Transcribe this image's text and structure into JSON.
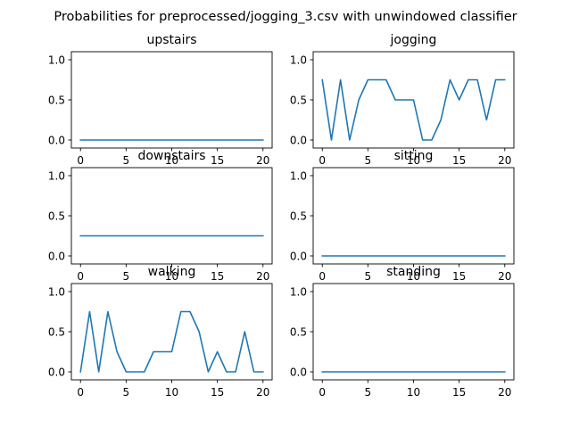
{
  "suptitle": "Probabilities for preprocessed/jogging_3.csv with unwindowed classifier",
  "line_color": "#1f77b4",
  "chart_data": [
    {
      "type": "line",
      "title": "upstairs",
      "x": [
        0,
        1,
        2,
        3,
        4,
        5,
        6,
        7,
        8,
        9,
        10,
        11,
        12,
        13,
        14,
        15,
        16,
        17,
        18,
        19,
        20
      ],
      "values": [
        0,
        0,
        0,
        0,
        0,
        0,
        0,
        0,
        0,
        0,
        0,
        0,
        0,
        0,
        0,
        0,
        0,
        0,
        0,
        0,
        0
      ],
      "xlim": [
        -1,
        21
      ],
      "ylim": [
        -0.1,
        1.1
      ],
      "xticks": [
        0,
        5,
        10,
        15,
        20
      ],
      "yticks": [
        0.0,
        0.5,
        1.0
      ],
      "xtick_labels": [
        "0",
        "5",
        "10",
        "15",
        "20"
      ],
      "ytick_labels": [
        "0.0",
        "0.5",
        "1.0"
      ],
      "grid": false
    },
    {
      "type": "line",
      "title": "jogging",
      "x": [
        0,
        1,
        2,
        3,
        4,
        5,
        6,
        7,
        8,
        9,
        10,
        11,
        12,
        13,
        14,
        15,
        16,
        17,
        18,
        19,
        20
      ],
      "values": [
        0.75,
        0,
        0.75,
        0,
        0.5,
        0.75,
        0.75,
        0.75,
        0.5,
        0.5,
        0.5,
        0,
        0,
        0.25,
        0.75,
        0.5,
        0.75,
        0.75,
        0.25,
        0.75,
        0.75
      ],
      "xlim": [
        -1,
        21
      ],
      "ylim": [
        -0.1,
        1.1
      ],
      "xticks": [
        0,
        5,
        10,
        15,
        20
      ],
      "yticks": [
        0.0,
        0.5,
        1.0
      ],
      "xtick_labels": [
        "0",
        "5",
        "10",
        "15",
        "20"
      ],
      "ytick_labels": [
        "0.0",
        "0.5",
        "1.0"
      ],
      "grid": false
    },
    {
      "type": "line",
      "title": "downstairs",
      "x": [
        0,
        1,
        2,
        3,
        4,
        5,
        6,
        7,
        8,
        9,
        10,
        11,
        12,
        13,
        14,
        15,
        16,
        17,
        18,
        19,
        20
      ],
      "values": [
        0.25,
        0.25,
        0.25,
        0.25,
        0.25,
        0.25,
        0.25,
        0.25,
        0.25,
        0.25,
        0.25,
        0.25,
        0.25,
        0.25,
        0.25,
        0.25,
        0.25,
        0.25,
        0.25,
        0.25,
        0.25
      ],
      "xlim": [
        -1,
        21
      ],
      "ylim": [
        -0.1,
        1.1
      ],
      "xticks": [
        0,
        5,
        10,
        15,
        20
      ],
      "yticks": [
        0.0,
        0.5,
        1.0
      ],
      "xtick_labels": [
        "0",
        "5",
        "10",
        "15",
        "20"
      ],
      "ytick_labels": [
        "0.0",
        "0.5",
        "1.0"
      ],
      "grid": false
    },
    {
      "type": "line",
      "title": "sitting",
      "x": [
        0,
        1,
        2,
        3,
        4,
        5,
        6,
        7,
        8,
        9,
        10,
        11,
        12,
        13,
        14,
        15,
        16,
        17,
        18,
        19,
        20
      ],
      "values": [
        0,
        0,
        0,
        0,
        0,
        0,
        0,
        0,
        0,
        0,
        0,
        0,
        0,
        0,
        0,
        0,
        0,
        0,
        0,
        0,
        0
      ],
      "xlim": [
        -1,
        21
      ],
      "ylim": [
        -0.1,
        1.1
      ],
      "xticks": [
        0,
        5,
        10,
        15,
        20
      ],
      "yticks": [
        0.0,
        0.5,
        1.0
      ],
      "xtick_labels": [
        "0",
        "5",
        "10",
        "15",
        "20"
      ],
      "ytick_labels": [
        "0.0",
        "0.5",
        "1.0"
      ],
      "grid": false
    },
    {
      "type": "line",
      "title": "walking",
      "x": [
        0,
        1,
        2,
        3,
        4,
        5,
        6,
        7,
        8,
        9,
        10,
        11,
        12,
        13,
        14,
        15,
        16,
        17,
        18,
        19,
        20
      ],
      "values": [
        0,
        0.75,
        0,
        0.75,
        0.25,
        0,
        0,
        0,
        0.25,
        0.25,
        0.25,
        0.75,
        0.75,
        0.5,
        0,
        0.25,
        0,
        0,
        0.5,
        0,
        0
      ],
      "xlim": [
        -1,
        21
      ],
      "ylim": [
        -0.1,
        1.1
      ],
      "xticks": [
        0,
        5,
        10,
        15,
        20
      ],
      "yticks": [
        0.0,
        0.5,
        1.0
      ],
      "xtick_labels": [
        "0",
        "5",
        "10",
        "15",
        "20"
      ],
      "ytick_labels": [
        "0.0",
        "0.5",
        "1.0"
      ],
      "grid": false
    },
    {
      "type": "line",
      "title": "standing",
      "x": [
        0,
        1,
        2,
        3,
        4,
        5,
        6,
        7,
        8,
        9,
        10,
        11,
        12,
        13,
        14,
        15,
        16,
        17,
        18,
        19,
        20
      ],
      "values": [
        0,
        0,
        0,
        0,
        0,
        0,
        0,
        0,
        0,
        0,
        0,
        0,
        0,
        0,
        0,
        0,
        0,
        0,
        0,
        0,
        0
      ],
      "xlim": [
        -1,
        21
      ],
      "ylim": [
        -0.1,
        1.1
      ],
      "xticks": [
        0,
        5,
        10,
        15,
        20
      ],
      "yticks": [
        0.0,
        0.5,
        1.0
      ],
      "xtick_labels": [
        "0",
        "5",
        "10",
        "15",
        "20"
      ],
      "ytick_labels": [
        "0.0",
        "0.5",
        "1.0"
      ],
      "grid": false
    }
  ]
}
